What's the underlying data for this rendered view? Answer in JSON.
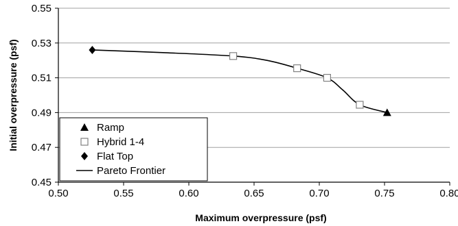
{
  "chart_data": {
    "type": "scatter",
    "xlabel": "Maximum overpressure (psf)",
    "ylabel": "Initial overpressure (psf)",
    "xlim": [
      0.5,
      0.8
    ],
    "ylim": [
      0.45,
      0.55
    ],
    "x_ticks": [
      "0.50",
      "0.55",
      "0.60",
      "0.65",
      "0.70",
      "0.75",
      "0.80"
    ],
    "y_ticks": [
      "0.45",
      "0.47",
      "0.49",
      "0.51",
      "0.53",
      "0.55"
    ],
    "grid": "horizontal",
    "legend_position": "bottom-left",
    "series": [
      {
        "name": "Ramp",
        "marker": "triangle",
        "points": [
          [
            0.752,
            0.49
          ]
        ]
      },
      {
        "name": "Hybrid 1-4",
        "marker": "open-square",
        "points": [
          [
            0.634,
            0.5225
          ],
          [
            0.683,
            0.5155
          ],
          [
            0.706,
            0.51
          ],
          [
            0.731,
            0.4945
          ]
        ]
      },
      {
        "name": "Flat Top",
        "marker": "diamond",
        "points": [
          [
            0.526,
            0.526
          ]
        ]
      },
      {
        "name": "Pareto Frontier",
        "marker": "line",
        "points": [
          [
            0.526,
            0.526
          ],
          [
            0.58,
            0.5245
          ],
          [
            0.634,
            0.5225
          ],
          [
            0.66,
            0.52
          ],
          [
            0.683,
            0.5155
          ],
          [
            0.706,
            0.51
          ],
          [
            0.718,
            0.503
          ],
          [
            0.731,
            0.4945
          ],
          [
            0.752,
            0.49
          ]
        ]
      }
    ],
    "colors": {
      "marker": "#000000",
      "open_marker_stroke": "#808080",
      "grid": "#a0a0a0",
      "axis": "#000000"
    }
  }
}
